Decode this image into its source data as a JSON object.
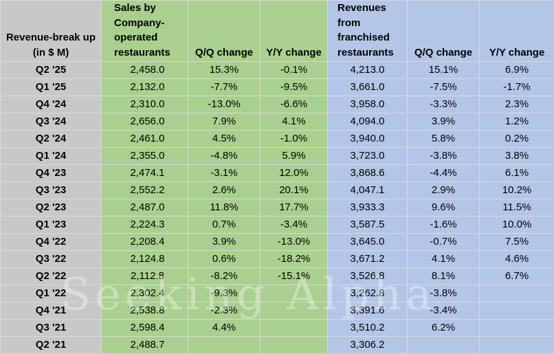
{
  "chart_data": {
    "type": "table",
    "title": "",
    "columns": [
      "Revenue-break up (in $ M)",
      "Sales by Company-operated restaurants",
      "Q/Q change",
      "Y/Y change",
      "Revenues from franchised restaurants",
      "Q/Q change",
      "Y/Y change"
    ],
    "rows": [
      [
        "Q2 '25",
        "2,458.0",
        "15.3%",
        "-0.1%",
        "4,213.0",
        "15.1%",
        "6.9%"
      ],
      [
        "Q1 '25",
        "2,132.0",
        "-7.7%",
        "-9.5%",
        "3,661.0",
        "-7.5%",
        "-1.7%"
      ],
      [
        "Q4 '24",
        "2,310.0",
        "-13.0%",
        "-6.6%",
        "3,958.0",
        "-3.3%",
        "2.3%"
      ],
      [
        "Q3 '24",
        "2,656.0",
        "7.9%",
        "4.1%",
        "4,094.0",
        "3.9%",
        "1.2%"
      ],
      [
        "Q2 '24",
        "2,461.0",
        "4.5%",
        "-1.0%",
        "3,940.0",
        "5.8%",
        "0.2%"
      ],
      [
        "Q1 '24",
        "2,355.0",
        "-4.8%",
        "5.9%",
        "3,723.0",
        "-3.8%",
        "3.8%"
      ],
      [
        "Q4 '23",
        "2,474.1",
        "-3.1%",
        "12.0%",
        "3,868.6",
        "-4.4%",
        "6.1%"
      ],
      [
        "Q3 '23",
        "2,552.2",
        "2.6%",
        "20.1%",
        "4,047.1",
        "2.9%",
        "10.2%"
      ],
      [
        "Q2 '23",
        "2,487.0",
        "11.8%",
        "17.7%",
        "3,933.3",
        "9.6%",
        "11.5%"
      ],
      [
        "Q1 '23",
        "2,224.3",
        "0.7%",
        "-3.4%",
        "3,587.5",
        "-1.6%",
        "10.0%"
      ],
      [
        "Q4 '22",
        "2,208.4",
        "3.9%",
        "-13.0%",
        "3,645.0",
        "-0.7%",
        "7.5%"
      ],
      [
        "Q3 '22",
        "2,124.8",
        "0.6%",
        "-18.2%",
        "3,671.2",
        "4.1%",
        "4.6%"
      ],
      [
        "Q2 '22",
        "2,112.8",
        "-8.2%",
        "-15.1%",
        "3,526.8",
        "8.1%",
        "6.7%"
      ],
      [
        "Q1 '22",
        "2,302.4",
        "-9.3%",
        "",
        "3,262.8",
        "-3.8%",
        ""
      ],
      [
        "Q4 '21",
        "2,538.8",
        "-2.3%",
        "",
        "3,391.6",
        "-3.4%",
        ""
      ],
      [
        "Q3 '21",
        "2,598.4",
        "4.4%",
        "",
        "3,510.2",
        "6.2%",
        ""
      ],
      [
        "Q2 '21",
        "2,488.7",
        "",
        "",
        "3,306.2",
        "",
        ""
      ]
    ]
  },
  "watermark": "Seeking Alpha",
  "colors": {
    "label_bg": "#c8c8c8",
    "company_bg": "#a9d08e",
    "franchise_bg": "#b4c6e7",
    "grid": "#d9d9d9"
  }
}
